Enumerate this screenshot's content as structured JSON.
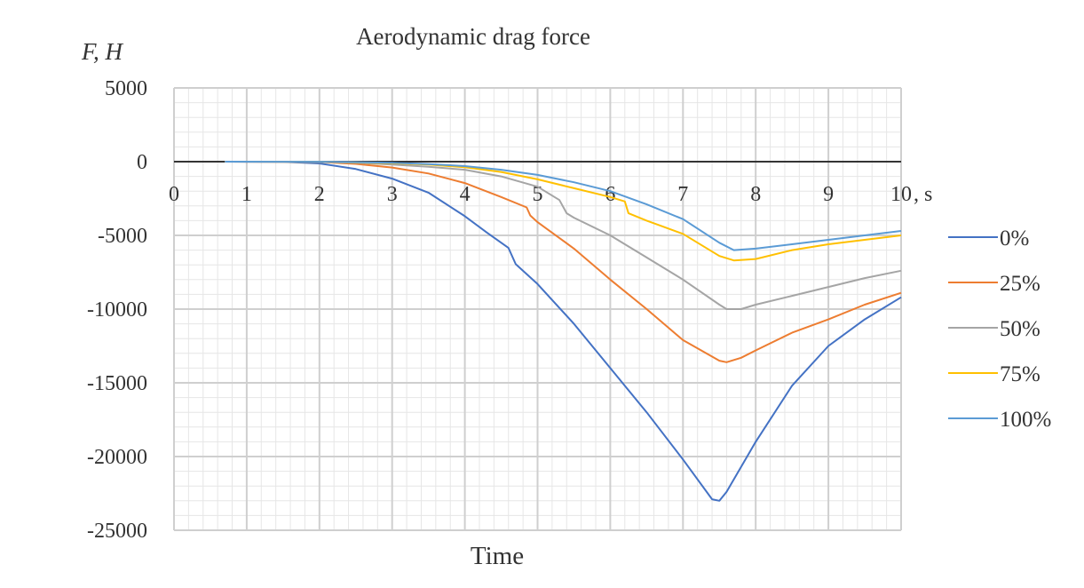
{
  "chart_data": {
    "type": "line",
    "title": "Aerodynamic drag force",
    "ylabel": "F, H",
    "xlabel": "Time",
    "x_unit": "s",
    "xlim": [
      0,
      10
    ],
    "ylim": [
      -25000,
      5000
    ],
    "x_ticks": [
      0,
      1,
      2,
      3,
      4,
      5,
      6,
      7,
      8,
      9,
      10
    ],
    "y_ticks": [
      5000,
      0,
      -5000,
      -10000,
      -15000,
      -20000,
      -25000
    ],
    "grid": true,
    "legend_position": "right",
    "series": [
      {
        "name": "0%",
        "color": "#4472c4",
        "points": [
          [
            0.7,
            0
          ],
          [
            1,
            -5
          ],
          [
            1.5,
            -20
          ],
          [
            2,
            -120
          ],
          [
            2.5,
            -500
          ],
          [
            3,
            -1150
          ],
          [
            3.5,
            -2100
          ],
          [
            4,
            -3700
          ],
          [
            4.3,
            -4800
          ],
          [
            4.6,
            -5850
          ],
          [
            4.7,
            -6950
          ],
          [
            5,
            -8300
          ],
          [
            5.5,
            -11000
          ],
          [
            6,
            -14000
          ],
          [
            6.5,
            -17000
          ],
          [
            7,
            -20200
          ],
          [
            7.4,
            -22900
          ],
          [
            7.5,
            -23000
          ],
          [
            7.6,
            -22400
          ],
          [
            8,
            -19000
          ],
          [
            8.5,
            -15200
          ],
          [
            9,
            -12500
          ],
          [
            9.5,
            -10700
          ],
          [
            10,
            -9200
          ]
        ]
      },
      {
        "name": "25%",
        "color": "#ed7d31",
        "points": [
          [
            0.7,
            0
          ],
          [
            2,
            -20
          ],
          [
            2.5,
            -150
          ],
          [
            3,
            -400
          ],
          [
            3.5,
            -800
          ],
          [
            4,
            -1450
          ],
          [
            4.5,
            -2400
          ],
          [
            4.85,
            -3100
          ],
          [
            4.9,
            -3650
          ],
          [
            5,
            -4100
          ],
          [
            5.5,
            -5900
          ],
          [
            6,
            -8000
          ],
          [
            6.5,
            -10000
          ],
          [
            7,
            -12100
          ],
          [
            7.5,
            -13500
          ],
          [
            7.6,
            -13600
          ],
          [
            7.8,
            -13300
          ],
          [
            8,
            -12800
          ],
          [
            8.5,
            -11600
          ],
          [
            9,
            -10700
          ],
          [
            9.5,
            -9700
          ],
          [
            10,
            -8900
          ]
        ]
      },
      {
        "name": "50%",
        "color": "#a5a5a5",
        "points": [
          [
            0.7,
            0
          ],
          [
            2,
            -10
          ],
          [
            2.5,
            -80
          ],
          [
            3,
            -200
          ],
          [
            3.5,
            -350
          ],
          [
            4,
            -550
          ],
          [
            4.5,
            -1000
          ],
          [
            5,
            -1700
          ],
          [
            5.3,
            -2600
          ],
          [
            5.4,
            -3500
          ],
          [
            5.5,
            -3800
          ],
          [
            6,
            -5000
          ],
          [
            6.5,
            -6500
          ],
          [
            7,
            -8000
          ],
          [
            7.5,
            -9700
          ],
          [
            7.6,
            -10000
          ],
          [
            7.8,
            -10000
          ],
          [
            8,
            -9700
          ],
          [
            8.5,
            -9100
          ],
          [
            9,
            -8500
          ],
          [
            9.5,
            -7900
          ],
          [
            10,
            -7400
          ]
        ]
      },
      {
        "name": "75%",
        "color": "#ffc000",
        "points": [
          [
            0.7,
            0
          ],
          [
            2,
            -5
          ],
          [
            3,
            -100
          ],
          [
            3.5,
            -200
          ],
          [
            4,
            -380
          ],
          [
            4.5,
            -700
          ],
          [
            5,
            -1200
          ],
          [
            5.5,
            -1800
          ],
          [
            6,
            -2400
          ],
          [
            6.2,
            -2700
          ],
          [
            6.25,
            -3500
          ],
          [
            6.5,
            -4000
          ],
          [
            7,
            -4900
          ],
          [
            7.5,
            -6400
          ],
          [
            7.7,
            -6700
          ],
          [
            8,
            -6600
          ],
          [
            8.5,
            -6000
          ],
          [
            9,
            -5600
          ],
          [
            9.5,
            -5300
          ],
          [
            10,
            -5000
          ]
        ]
      },
      {
        "name": "100%",
        "color": "#5b9bd5",
        "points": [
          [
            0.7,
            0
          ],
          [
            2,
            -5
          ],
          [
            3,
            -80
          ],
          [
            3.5,
            -160
          ],
          [
            4,
            -300
          ],
          [
            4.5,
            -550
          ],
          [
            5,
            -900
          ],
          [
            5.5,
            -1400
          ],
          [
            6,
            -2000
          ],
          [
            6.5,
            -2900
          ],
          [
            7,
            -3900
          ],
          [
            7.5,
            -5500
          ],
          [
            7.7,
            -6000
          ],
          [
            8,
            -5900
          ],
          [
            8.5,
            -5600
          ],
          [
            9,
            -5300
          ],
          [
            9.5,
            -5000
          ],
          [
            10,
            -4700
          ]
        ]
      }
    ]
  }
}
